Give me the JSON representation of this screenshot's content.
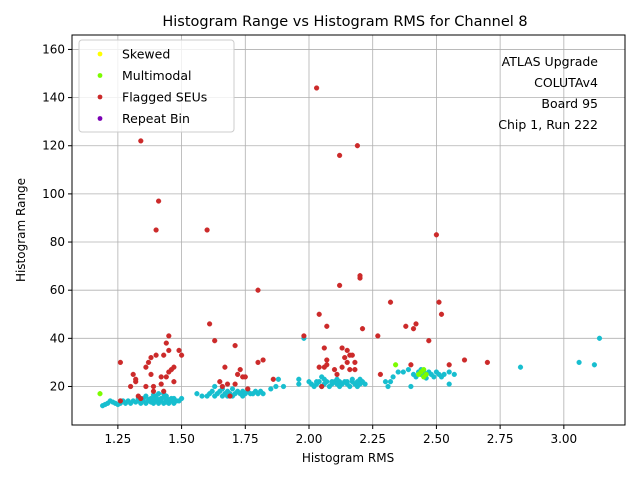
{
  "chart_data": {
    "type": "scatter",
    "title": "Histogram Range vs Histogram RMS for Channel 8",
    "xlabel": "Histogram RMS",
    "ylabel": "Histogram Range",
    "xlim": [
      1.07,
      3.24
    ],
    "ylim": [
      4,
      166
    ],
    "xticks": [
      1.25,
      1.5,
      1.75,
      2.0,
      2.25,
      2.5,
      2.75,
      3.0
    ],
    "xtick_labels": [
      "1.25",
      "1.50",
      "1.75",
      "2.00",
      "2.25",
      "2.50",
      "2.75",
      "3.00"
    ],
    "yticks": [
      20,
      40,
      60,
      80,
      100,
      120,
      140,
      160
    ],
    "ytick_labels": [
      "20",
      "40",
      "60",
      "80",
      "100",
      "120",
      "140",
      "160"
    ],
    "grid": true,
    "legend_position": "top-left",
    "annotation_position": "top-right",
    "annotation_lines": [
      "ATLAS Upgrade",
      "COLUTAv4",
      "Board 95",
      "Chip 1, Run 222"
    ],
    "series": [
      {
        "name": "",
        "color": "#17becf",
        "in_legend": false,
        "points": [
          [
            1.19,
            12
          ],
          [
            1.2,
            12.5
          ],
          [
            1.21,
            13
          ],
          [
            1.22,
            14
          ],
          [
            1.23,
            13.5
          ],
          [
            1.24,
            13
          ],
          [
            1.25,
            12.5
          ],
          [
            1.26,
            13
          ],
          [
            1.27,
            14
          ],
          [
            1.28,
            13
          ],
          [
            1.29,
            14
          ],
          [
            1.3,
            13
          ],
          [
            1.31,
            14
          ],
          [
            1.32,
            13.5
          ],
          [
            1.33,
            14
          ],
          [
            1.34,
            13
          ],
          [
            1.35,
            14
          ],
          [
            1.36,
            13
          ],
          [
            1.37,
            14
          ],
          [
            1.38,
            13.5
          ],
          [
            1.39,
            13
          ],
          [
            1.4,
            14
          ],
          [
            1.41,
            13
          ],
          [
            1.42,
            14
          ],
          [
            1.43,
            13
          ],
          [
            1.44,
            14
          ],
          [
            1.45,
            13
          ],
          [
            1.46,
            14
          ],
          [
            1.47,
            13
          ],
          [
            1.48,
            14
          ],
          [
            1.36,
            16
          ],
          [
            1.38,
            15
          ],
          [
            1.4,
            16
          ],
          [
            1.42,
            15
          ],
          [
            1.44,
            16
          ],
          [
            1.46,
            15
          ],
          [
            1.35,
            15
          ],
          [
            1.37,
            14.5
          ],
          [
            1.39,
            15
          ],
          [
            1.41,
            14.5
          ],
          [
            1.43,
            15.5
          ],
          [
            1.45,
            14.5
          ],
          [
            1.47,
            15
          ],
          [
            1.49,
            14
          ],
          [
            1.5,
            15
          ],
          [
            1.33,
            15
          ],
          [
            1.41,
            17
          ],
          [
            1.43,
            17
          ],
          [
            1.39,
            16.5
          ],
          [
            1.44,
            13.5
          ],
          [
            1.56,
            17
          ],
          [
            1.58,
            16
          ],
          [
            1.6,
            16
          ],
          [
            1.61,
            17
          ],
          [
            1.62,
            18
          ],
          [
            1.63,
            16
          ],
          [
            1.64,
            17
          ],
          [
            1.65,
            18
          ],
          [
            1.66,
            16
          ],
          [
            1.67,
            17
          ],
          [
            1.68,
            16
          ],
          [
            1.69,
            17
          ],
          [
            1.7,
            16
          ],
          [
            1.71,
            17
          ],
          [
            1.72,
            18
          ],
          [
            1.73,
            17
          ],
          [
            1.74,
            16
          ],
          [
            1.75,
            17
          ],
          [
            1.76,
            18
          ],
          [
            1.77,
            17
          ],
          [
            1.78,
            17
          ],
          [
            1.79,
            18
          ],
          [
            1.8,
            17
          ],
          [
            1.81,
            18
          ],
          [
            1.82,
            17
          ],
          [
            1.63,
            20
          ],
          [
            1.66,
            19
          ],
          [
            1.7,
            19
          ],
          [
            1.74,
            18
          ],
          [
            1.68,
            18
          ],
          [
            1.85,
            19
          ],
          [
            1.87,
            20
          ],
          [
            1.88,
            23
          ],
          [
            1.9,
            20
          ],
          [
            1.96,
            21
          ],
          [
            1.96,
            23
          ],
          [
            1.98,
            40
          ],
          [
            2.0,
            22
          ],
          [
            2.01,
            21
          ],
          [
            2.02,
            20
          ],
          [
            2.03,
            21
          ],
          [
            2.04,
            22
          ],
          [
            2.05,
            20
          ],
          [
            2.05,
            24
          ],
          [
            2.06,
            21
          ],
          [
            2.07,
            22
          ],
          [
            2.08,
            20
          ],
          [
            2.09,
            21
          ],
          [
            2.1,
            22
          ],
          [
            2.11,
            21
          ],
          [
            2.12,
            20
          ],
          [
            2.12,
            22
          ],
          [
            2.13,
            21
          ],
          [
            2.14,
            22
          ],
          [
            2.15,
            21
          ],
          [
            2.16,
            20
          ],
          [
            2.17,
            22
          ],
          [
            2.18,
            21
          ],
          [
            2.19,
            22
          ],
          [
            2.2,
            21
          ],
          [
            2.21,
            22
          ],
          [
            2.22,
            21
          ],
          [
            2.17,
            23
          ],
          [
            2.06,
            23
          ],
          [
            2.09,
            22
          ],
          [
            2.15,
            22
          ],
          [
            2.19,
            20
          ],
          [
            2.03,
            22
          ],
          [
            2.11,
            23
          ],
          [
            2.2,
            23
          ],
          [
            2.31,
            20
          ],
          [
            2.32,
            22
          ],
          [
            2.33,
            24
          ],
          [
            2.35,
            26
          ],
          [
            2.37,
            26
          ],
          [
            2.39,
            27
          ],
          [
            2.4,
            20
          ],
          [
            2.42,
            24
          ],
          [
            2.43,
            26
          ],
          [
            2.44,
            25
          ],
          [
            2.45,
            26
          ],
          [
            2.46,
            25
          ],
          [
            2.47,
            26
          ],
          [
            2.48,
            25
          ],
          [
            2.49,
            24
          ],
          [
            2.5,
            26
          ],
          [
            2.51,
            25
          ],
          [
            2.52,
            24
          ],
          [
            2.53,
            25
          ],
          [
            2.55,
            26
          ],
          [
            2.55,
            21
          ],
          [
            2.57,
            25
          ],
          [
            2.3,
            22
          ],
          [
            2.83,
            28
          ],
          [
            3.06,
            30
          ],
          [
            3.12,
            29
          ],
          [
            3.14,
            40
          ],
          [
            2.44,
            27
          ],
          [
            2.46,
            23.5
          ],
          [
            2.41,
            25
          ]
        ]
      },
      {
        "name": "Skewed",
        "color": "#ffff00",
        "in_legend": true,
        "points": []
      },
      {
        "name": "Multimodal",
        "color": "#7cfc00",
        "in_legend": true,
        "points": [
          [
            1.18,
            17
          ],
          [
            2.34,
            29
          ],
          [
            2.43,
            25
          ],
          [
            2.44,
            26
          ],
          [
            2.45,
            27
          ],
          [
            2.45,
            24
          ],
          [
            2.46,
            25
          ]
        ]
      },
      {
        "name": "Flagged SEUs",
        "color": "#cc2a2a",
        "in_legend": true,
        "points": [
          [
            1.26,
            30
          ],
          [
            1.26,
            14
          ],
          [
            1.3,
            20
          ],
          [
            1.31,
            25
          ],
          [
            1.32,
            23
          ],
          [
            1.32,
            22
          ],
          [
            1.33,
            16
          ],
          [
            1.34,
            15
          ],
          [
            1.34,
            122
          ],
          [
            1.36,
            28
          ],
          [
            1.36,
            20
          ],
          [
            1.37,
            30
          ],
          [
            1.38,
            32
          ],
          [
            1.38,
            25
          ],
          [
            1.39,
            18
          ],
          [
            1.39,
            20
          ],
          [
            1.4,
            33
          ],
          [
            1.4,
            85
          ],
          [
            1.41,
            97
          ],
          [
            1.42,
            21
          ],
          [
            1.42,
            24
          ],
          [
            1.43,
            33
          ],
          [
            1.43,
            18
          ],
          [
            1.44,
            24
          ],
          [
            1.44,
            38
          ],
          [
            1.45,
            35
          ],
          [
            1.45,
            41
          ],
          [
            1.45,
            26
          ],
          [
            1.46,
            27
          ],
          [
            1.47,
            28
          ],
          [
            1.47,
            22
          ],
          [
            1.49,
            35
          ],
          [
            1.5,
            33
          ],
          [
            1.6,
            85
          ],
          [
            1.61,
            46
          ],
          [
            1.63,
            39
          ],
          [
            1.65,
            22
          ],
          [
            1.66,
            20
          ],
          [
            1.67,
            28
          ],
          [
            1.68,
            21
          ],
          [
            1.69,
            16
          ],
          [
            1.71,
            21
          ],
          [
            1.71,
            37
          ],
          [
            1.72,
            25
          ],
          [
            1.73,
            27
          ],
          [
            1.74,
            24
          ],
          [
            1.75,
            24
          ],
          [
            1.76,
            19
          ],
          [
            1.8,
            60
          ],
          [
            1.8,
            30
          ],
          [
            1.82,
            31
          ],
          [
            1.86,
            23
          ],
          [
            1.98,
            41
          ],
          [
            2.03,
            144
          ],
          [
            2.04,
            50
          ],
          [
            2.04,
            28
          ],
          [
            2.05,
            20
          ],
          [
            2.06,
            36
          ],
          [
            2.06,
            28
          ],
          [
            2.07,
            31
          ],
          [
            2.07,
            29
          ],
          [
            2.07,
            45
          ],
          [
            2.1,
            27
          ],
          [
            2.11,
            25
          ],
          [
            2.12,
            116
          ],
          [
            2.12,
            62
          ],
          [
            2.13,
            28
          ],
          [
            2.13,
            36
          ],
          [
            2.14,
            32
          ],
          [
            2.15,
            30
          ],
          [
            2.15,
            35
          ],
          [
            2.16,
            33
          ],
          [
            2.16,
            27
          ],
          [
            2.17,
            33
          ],
          [
            2.18,
            30
          ],
          [
            2.18,
            27
          ],
          [
            2.19,
            120
          ],
          [
            2.2,
            65
          ],
          [
            2.2,
            66
          ],
          [
            2.21,
            44
          ],
          [
            2.27,
            41
          ],
          [
            2.28,
            25
          ],
          [
            2.32,
            55
          ],
          [
            2.38,
            45
          ],
          [
            2.4,
            29
          ],
          [
            2.41,
            44
          ],
          [
            2.42,
            46
          ],
          [
            2.47,
            39
          ],
          [
            2.5,
            83
          ],
          [
            2.51,
            55
          ],
          [
            2.52,
            50
          ],
          [
            2.55,
            29
          ],
          [
            2.61,
            31
          ],
          [
            2.7,
            30
          ]
        ]
      },
      {
        "name": "Repeat Bin",
        "color": "#7b00b4",
        "in_legend": true,
        "points": []
      }
    ]
  }
}
